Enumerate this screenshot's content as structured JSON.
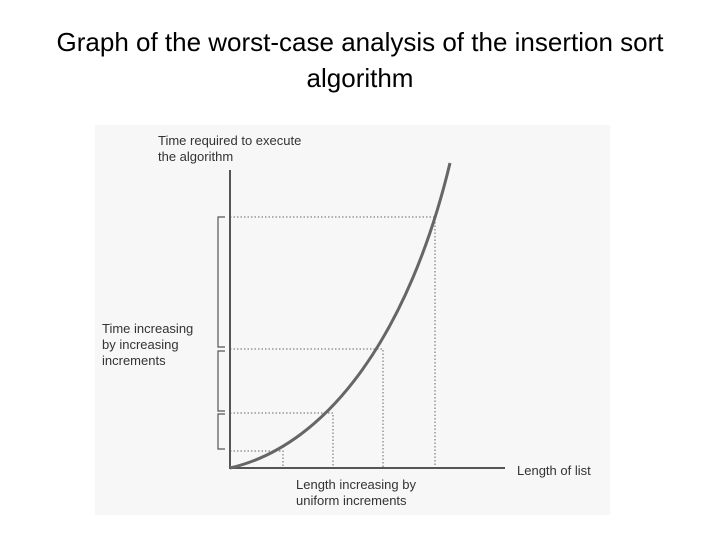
{
  "title": "Graph of the worst-case analysis of the insertion sort algorithm",
  "y_axis_label": [
    "Time required to execute",
    "the algorithm"
  ],
  "x_axis_label": "Length of list",
  "time_annotation": [
    "Time increasing",
    "by increasing",
    "increments"
  ],
  "length_annotation": [
    "Length increasing by",
    "uniform increments"
  ]
}
